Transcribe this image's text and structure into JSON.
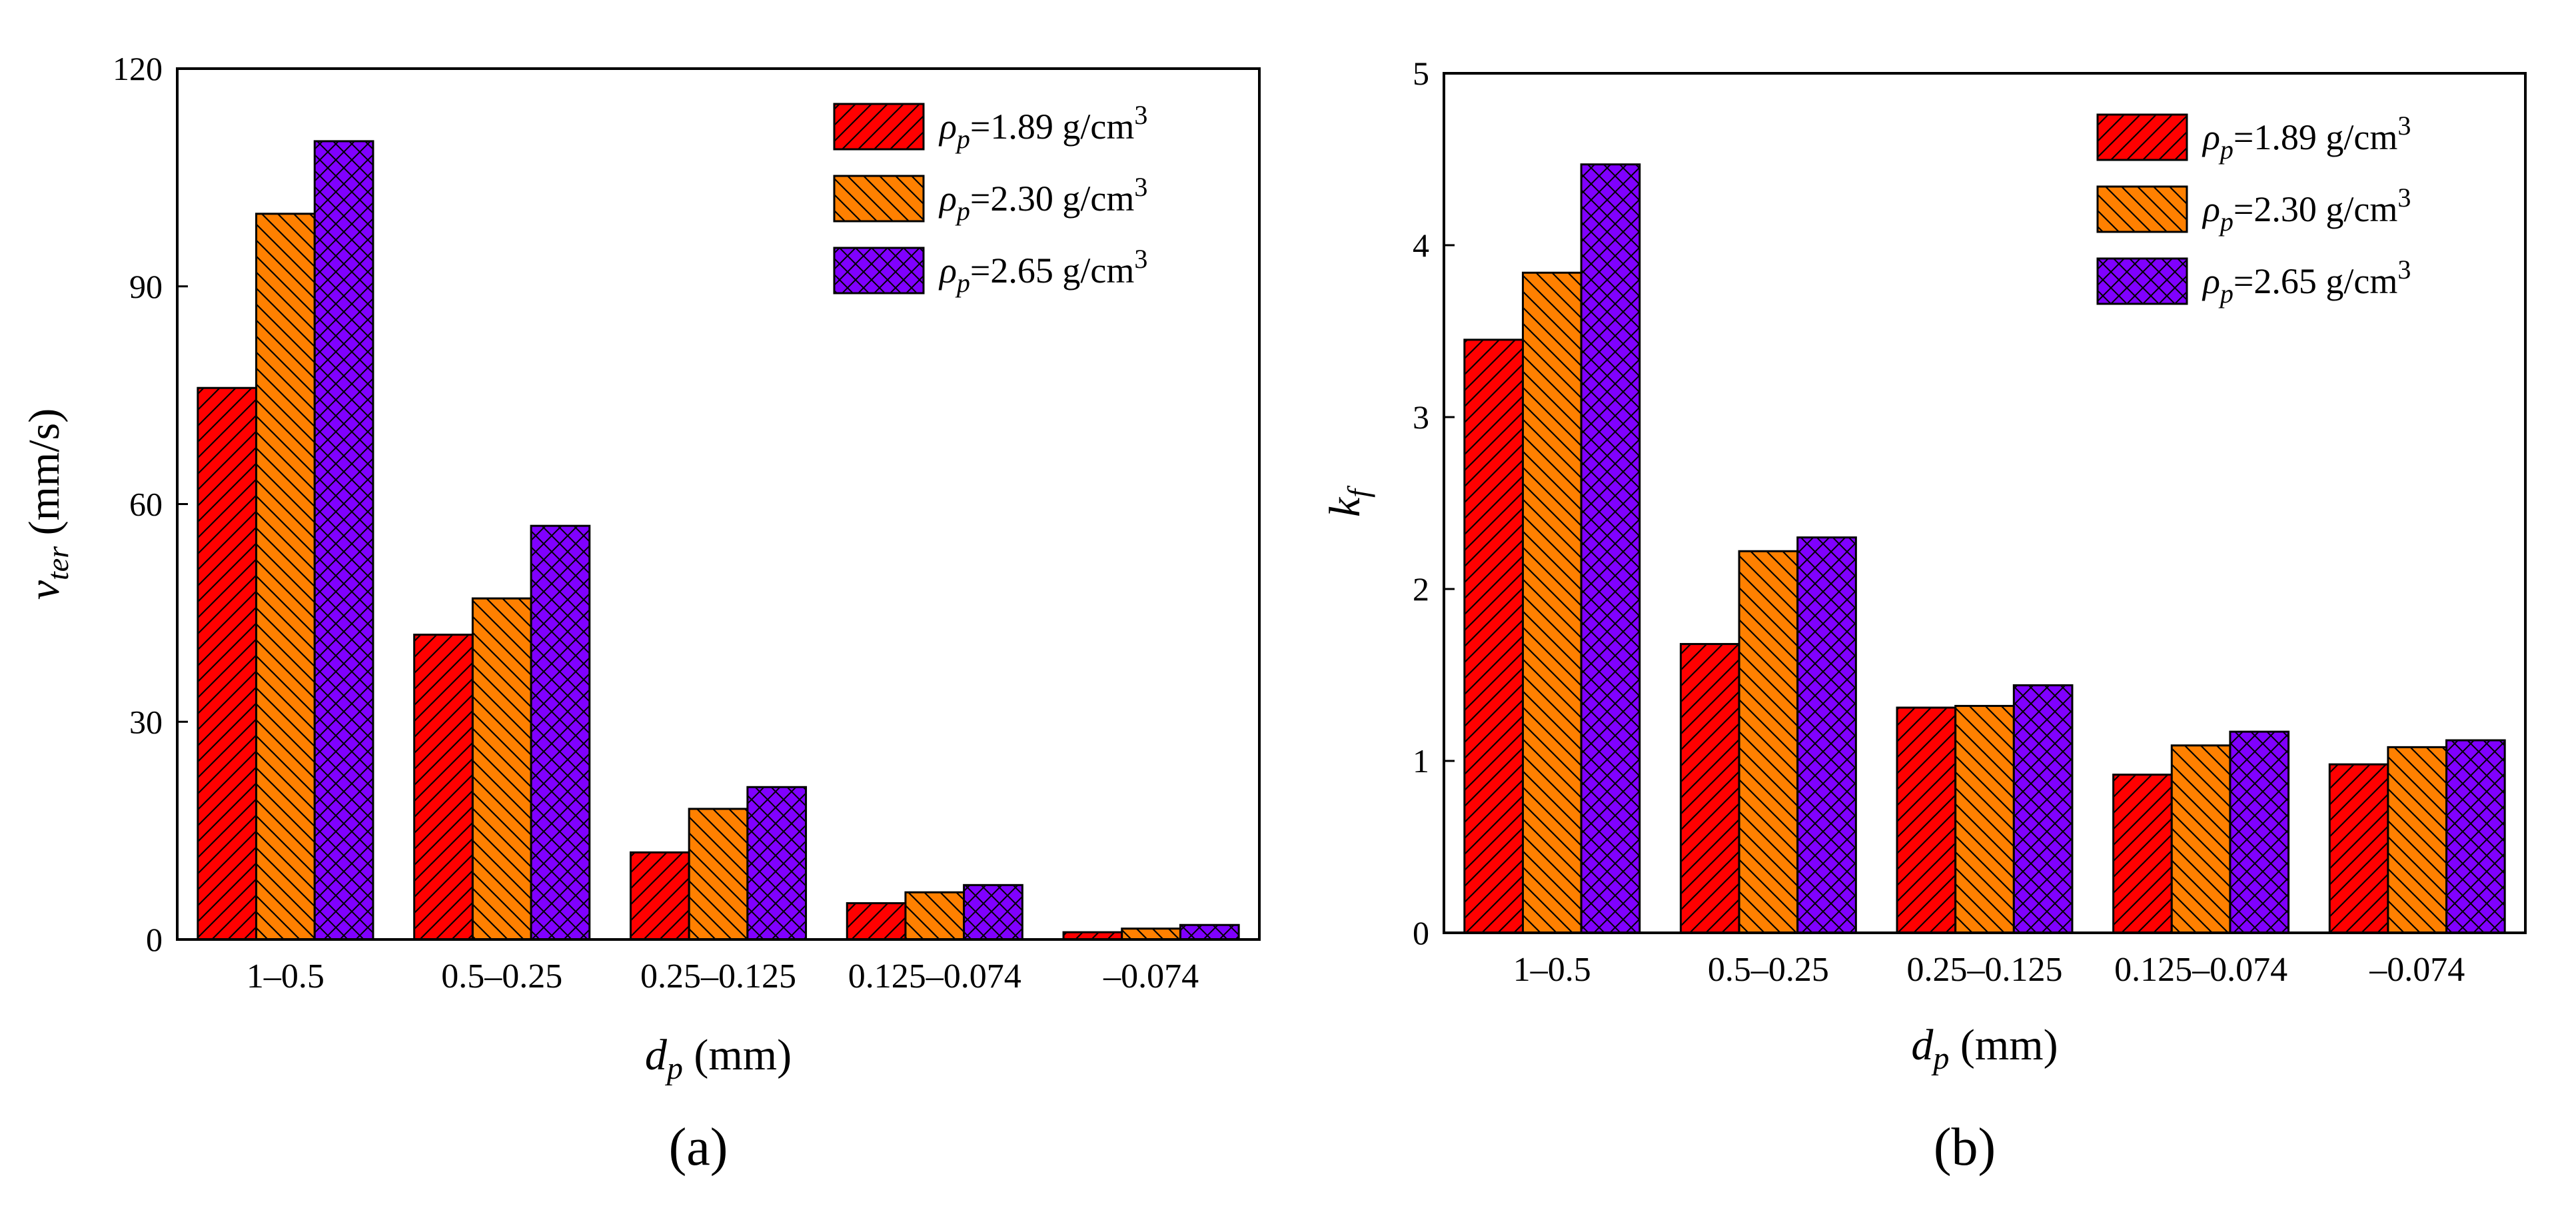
{
  "chart_data": [
    {
      "type": "bar",
      "panel_label": "(a)",
      "categories": [
        "1–0.5",
        "0.5–0.25",
        "0.25–0.125",
        "0.125–0.074",
        "–0.074"
      ],
      "xlabel": {
        "symbol": "d",
        "sub": "p",
        "unit": " (mm)"
      },
      "ylabel": {
        "symbol": "v",
        "sub": "ter",
        "unit": " (mm/s)"
      },
      "ylim": [
        0,
        120
      ],
      "yticks": [
        0,
        30,
        60,
        90,
        120
      ],
      "series": [
        {
          "name": {
            "symbol": "ρ",
            "sub": "p",
            "text": "=1.89 g/cm",
            "sup": "3"
          },
          "color": "#ff0000",
          "pattern": "diag-up",
          "values": [
            76,
            42,
            12,
            5,
            1
          ]
        },
        {
          "name": {
            "symbol": "ρ",
            "sub": "p",
            "text": "=2.30 g/cm",
            "sup": "3"
          },
          "color": "#ff8000",
          "pattern": "diag-down",
          "values": [
            100,
            47,
            18,
            6.5,
            1.5
          ]
        },
        {
          "name": {
            "symbol": "ρ",
            "sub": "p",
            "text": "=2.65 g/cm",
            "sup": "3"
          },
          "color": "#8000ff",
          "pattern": "cross",
          "values": [
            110,
            57,
            21,
            7.5,
            2
          ]
        }
      ],
      "legend_position": "top-right",
      "grid": false
    },
    {
      "type": "bar",
      "panel_label": "(b)",
      "categories": [
        "1–0.5",
        "0.5–0.25",
        "0.25–0.125",
        "0.125–0.074",
        "–0.074"
      ],
      "xlabel": {
        "symbol": "d",
        "sub": "p",
        "unit": " (mm)"
      },
      "ylabel": {
        "symbol": "k",
        "sub": "f",
        "unit": ""
      },
      "ylim": [
        0,
        5
      ],
      "yticks": [
        0,
        1,
        2,
        3,
        4,
        5
      ],
      "series": [
        {
          "name": {
            "symbol": "ρ",
            "sub": "p",
            "text": "=1.89 g/cm",
            "sup": "3"
          },
          "color": "#ff0000",
          "pattern": "diag-up",
          "values": [
            3.45,
            1.68,
            1.31,
            0.92,
            0.98
          ]
        },
        {
          "name": {
            "symbol": "ρ",
            "sub": "p",
            "text": "=2.30 g/cm",
            "sup": "3"
          },
          "color": "#ff8000",
          "pattern": "diag-down",
          "values": [
            3.84,
            2.22,
            1.32,
            1.09,
            1.08
          ]
        },
        {
          "name": {
            "symbol": "ρ",
            "sub": "p",
            "text": "=2.65 g/cm",
            "sup": "3"
          },
          "color": "#8000ff",
          "pattern": "cross",
          "values": [
            4.47,
            2.3,
            1.44,
            1.17,
            1.12
          ]
        }
      ],
      "legend_position": "top-right",
      "grid": false
    }
  ]
}
